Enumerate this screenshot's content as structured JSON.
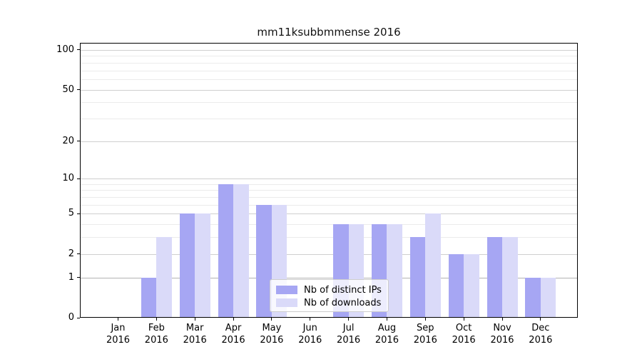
{
  "chart_data": {
    "type": "bar",
    "title": "mm11ksubbmmense 2016",
    "categories": [
      "Jan",
      "Feb",
      "Mar",
      "Apr",
      "May",
      "Jun",
      "Jul",
      "Aug",
      "Sep",
      "Oct",
      "Nov",
      "Dec"
    ],
    "category_year": "2016",
    "series": [
      {
        "name": "Nb of distinct IPs",
        "color": "#a6a6f3",
        "values": [
          0,
          1,
          5,
          9,
          6,
          0,
          4,
          4,
          3,
          2,
          3,
          1
        ]
      },
      {
        "name": "Nb of downloads",
        "color": "#dadaf9",
        "values": [
          0,
          3,
          5,
          9,
          6,
          0,
          4,
          4,
          5,
          2,
          3,
          1
        ]
      }
    ],
    "yscale": "log1p",
    "yticks": [
      0,
      1,
      2,
      5,
      10,
      20,
      50,
      100
    ],
    "minor_yticks": [
      3,
      4,
      6,
      7,
      8,
      9,
      30,
      40,
      60,
      70,
      80,
      90
    ],
    "ylim": [
      0,
      113
    ],
    "xlabel": "",
    "ylabel": "",
    "grid": true,
    "legend_position": "lower center"
  }
}
